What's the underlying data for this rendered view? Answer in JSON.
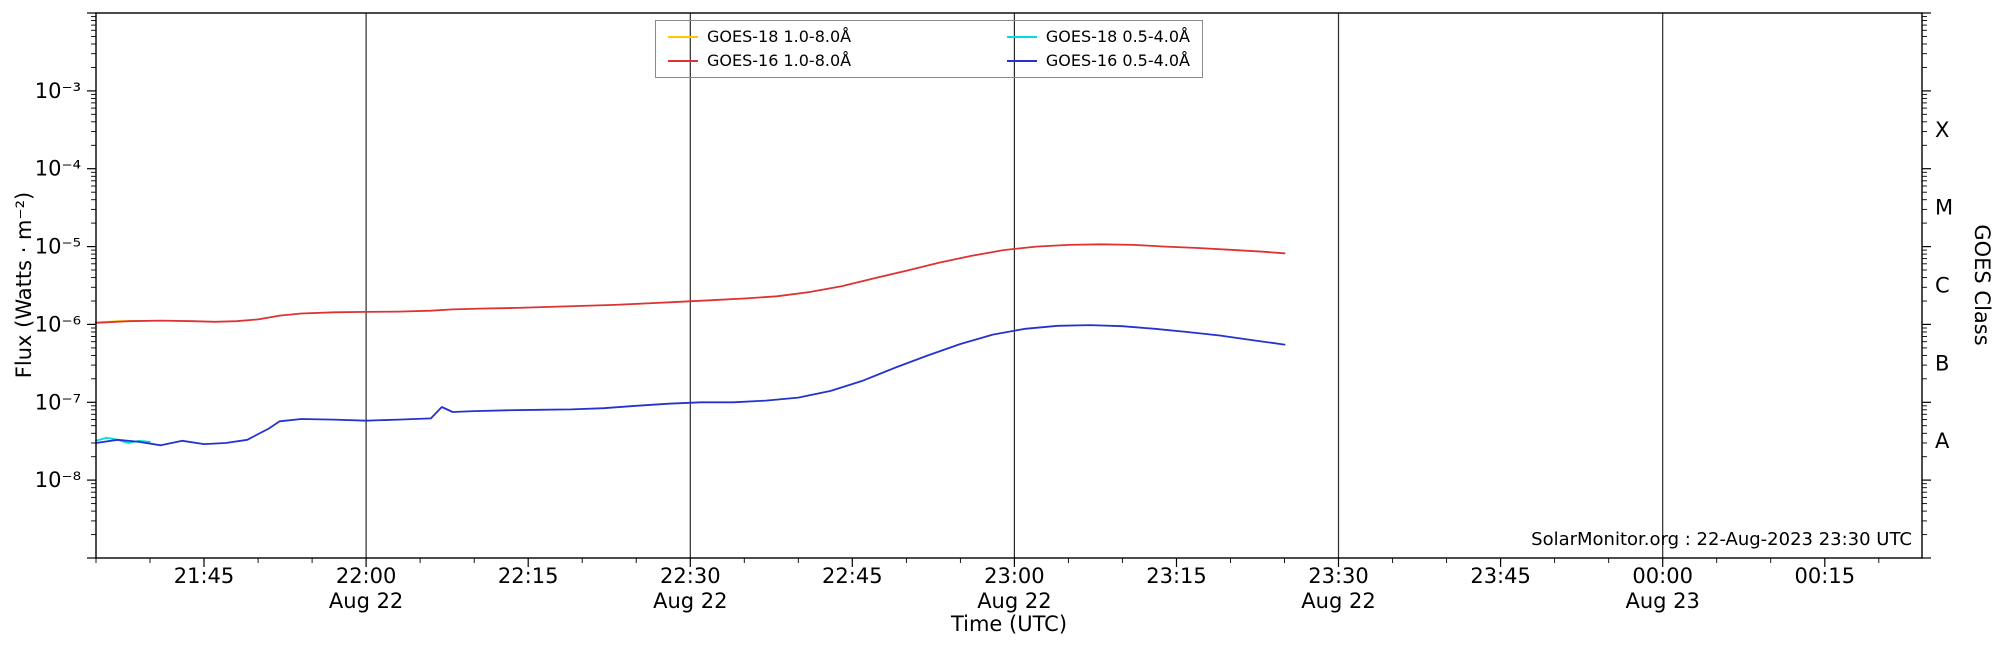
{
  "legend": {
    "items": [
      {
        "label": "GOES-18 1.0-8.0Å",
        "color": "#ffc800"
      },
      {
        "label": "GOES-16 1.0-8.0Å",
        "color": "#dd3333"
      },
      {
        "label": "GOES-18 0.5-4.0Å",
        "color": "#00dcdc"
      },
      {
        "label": "GOES-16 0.5-4.0Å",
        "color": "#2433cf"
      }
    ]
  },
  "chart_data": {
    "type": "line",
    "title": "",
    "xlabel": "Time (UTC)",
    "ylabel": "Flux (Watts · m⁻²)",
    "ylabel_right": "GOES Class",
    "annotation": "SolarMonitor.org : 22-Aug-2023 23:30 UTC",
    "x_unit": "minutes since 21:00 UTC on 2023-08-22",
    "x_domain": [
      35,
      204
    ],
    "y_domain": [
      1e-09,
      0.01
    ],
    "y_scale": "log",
    "x_minor_step": 5,
    "colors": {
      "frame": "#000000",
      "vline": "#2a2a2a",
      "background": "#ffffff"
    },
    "x_ticks": [
      {
        "label": "21:45",
        "minute": 45
      },
      {
        "label": "22:00",
        "minute": 60,
        "date": "Aug 22"
      },
      {
        "label": "22:15",
        "minute": 75
      },
      {
        "label": "22:30",
        "minute": 90,
        "date": "Aug 22"
      },
      {
        "label": "22:45",
        "minute": 105
      },
      {
        "label": "23:00",
        "minute": 120,
        "date": "Aug 22"
      },
      {
        "label": "23:15",
        "minute": 135
      },
      {
        "label": "23:30",
        "minute": 150,
        "date": "Aug 22"
      },
      {
        "label": "23:45",
        "minute": 165
      },
      {
        "label": "00:00",
        "minute": 180,
        "date": "Aug 23"
      },
      {
        "label": "00:15",
        "minute": 195
      }
    ],
    "vlines": [
      60,
      90,
      120,
      150,
      180
    ],
    "y_ticks": [
      {
        "label": "10⁻³",
        "value": 0.001
      },
      {
        "label": "10⁻⁴",
        "value": 0.0001
      },
      {
        "label": "10⁻⁵",
        "value": 1e-05
      },
      {
        "label": "10⁻⁶",
        "value": 1e-06
      },
      {
        "label": "10⁻⁷",
        "value": 1e-07
      },
      {
        "label": "10⁻⁸",
        "value": 1e-08
      }
    ],
    "goes_classes": [
      {
        "label": "X",
        "value": 0.0003162
      },
      {
        "label": "M",
        "value": 3.162e-05
      },
      {
        "label": "C",
        "value": 3.162e-06
      },
      {
        "label": "B",
        "value": 3.162e-07
      },
      {
        "label": "A",
        "value": 3.162e-08
      }
    ],
    "series": [
      {
        "id": "goes18-long",
        "name": "GOES-18 1.0-8.0Å",
        "color": "#ffc800",
        "points": [
          [
            35,
            1.06e-06
          ],
          [
            37,
            1.1e-06
          ],
          [
            39,
            1.11e-06
          ]
        ]
      },
      {
        "id": "goes18-short",
        "name": "GOES-18 0.5-4.0Å",
        "color": "#00dcdc",
        "points": [
          [
            35,
            3.2e-08
          ],
          [
            36,
            3.5e-08
          ],
          [
            37,
            3.3e-08
          ],
          [
            38,
            3e-08
          ],
          [
            39,
            3.2e-08
          ],
          [
            40,
            3.1e-08
          ]
        ]
      },
      {
        "id": "goes16-long",
        "name": "GOES-16 1.0-8.0Å",
        "color": "#dd3333",
        "points": [
          [
            35,
            1.05e-06
          ],
          [
            38,
            1.1e-06
          ],
          [
            41,
            1.12e-06
          ],
          [
            44,
            1.1e-06
          ],
          [
            46,
            1.08e-06
          ],
          [
            48,
            1.1e-06
          ],
          [
            50,
            1.16e-06
          ],
          [
            52,
            1.3e-06
          ],
          [
            54,
            1.38e-06
          ],
          [
            57,
            1.43e-06
          ],
          [
            60,
            1.45e-06
          ],
          [
            63,
            1.46e-06
          ],
          [
            66,
            1.5e-06
          ],
          [
            68,
            1.56e-06
          ],
          [
            71,
            1.6e-06
          ],
          [
            74,
            1.63e-06
          ],
          [
            77,
            1.68e-06
          ],
          [
            80,
            1.73e-06
          ],
          [
            83,
            1.78e-06
          ],
          [
            86,
            1.86e-06
          ],
          [
            89,
            1.95e-06
          ],
          [
            92,
            2.05e-06
          ],
          [
            95,
            2.15e-06
          ],
          [
            98,
            2.3e-06
          ],
          [
            101,
            2.6e-06
          ],
          [
            104,
            3.1e-06
          ],
          [
            107,
            3.9e-06
          ],
          [
            110,
            4.9e-06
          ],
          [
            113,
            6.2e-06
          ],
          [
            116,
            7.6e-06
          ],
          [
            119,
            9e-06
          ],
          [
            122,
            1e-05
          ],
          [
            125,
            1.05e-05
          ],
          [
            128,
            1.07e-05
          ],
          [
            131,
            1.05e-05
          ],
          [
            134,
            1e-05
          ],
          [
            137,
            9.6e-06
          ],
          [
            140,
            9.1e-06
          ],
          [
            143,
            8.6e-06
          ],
          [
            145,
            8.2e-06
          ]
        ]
      },
      {
        "id": "goes16-short",
        "name": "GOES-16 0.5-4.0Å",
        "color": "#2433cf",
        "points": [
          [
            35,
            3e-08
          ],
          [
            37,
            3.3e-08
          ],
          [
            39,
            3.1e-08
          ],
          [
            41,
            2.8e-08
          ],
          [
            43,
            3.2e-08
          ],
          [
            45,
            2.9e-08
          ],
          [
            47,
            3e-08
          ],
          [
            49,
            3.3e-08
          ],
          [
            51,
            4.6e-08
          ],
          [
            52,
            5.7e-08
          ],
          [
            54,
            6.1e-08
          ],
          [
            57,
            6e-08
          ],
          [
            60,
            5.8e-08
          ],
          [
            63,
            6e-08
          ],
          [
            66,
            6.2e-08
          ],
          [
            67,
            8.7e-08
          ],
          [
            68,
            7.5e-08
          ],
          [
            70,
            7.7e-08
          ],
          [
            73,
            7.9e-08
          ],
          [
            76,
            8e-08
          ],
          [
            79,
            8.1e-08
          ],
          [
            82,
            8.4e-08
          ],
          [
            85,
            9e-08
          ],
          [
            88,
            9.6e-08
          ],
          [
            91,
            1e-07
          ],
          [
            94,
            1e-07
          ],
          [
            97,
            1.05e-07
          ],
          [
            100,
            1.15e-07
          ],
          [
            103,
            1.4e-07
          ],
          [
            106,
            1.9e-07
          ],
          [
            109,
            2.8e-07
          ],
          [
            112,
            4e-07
          ],
          [
            115,
            5.6e-07
          ],
          [
            118,
            7.4e-07
          ],
          [
            121,
            8.8e-07
          ],
          [
            124,
            9.6e-07
          ],
          [
            127,
            9.8e-07
          ],
          [
            130,
            9.5e-07
          ],
          [
            133,
            8.8e-07
          ],
          [
            136,
            8e-07
          ],
          [
            139,
            7.2e-07
          ],
          [
            142,
            6.3e-07
          ],
          [
            145,
            5.5e-07
          ]
        ]
      }
    ]
  }
}
